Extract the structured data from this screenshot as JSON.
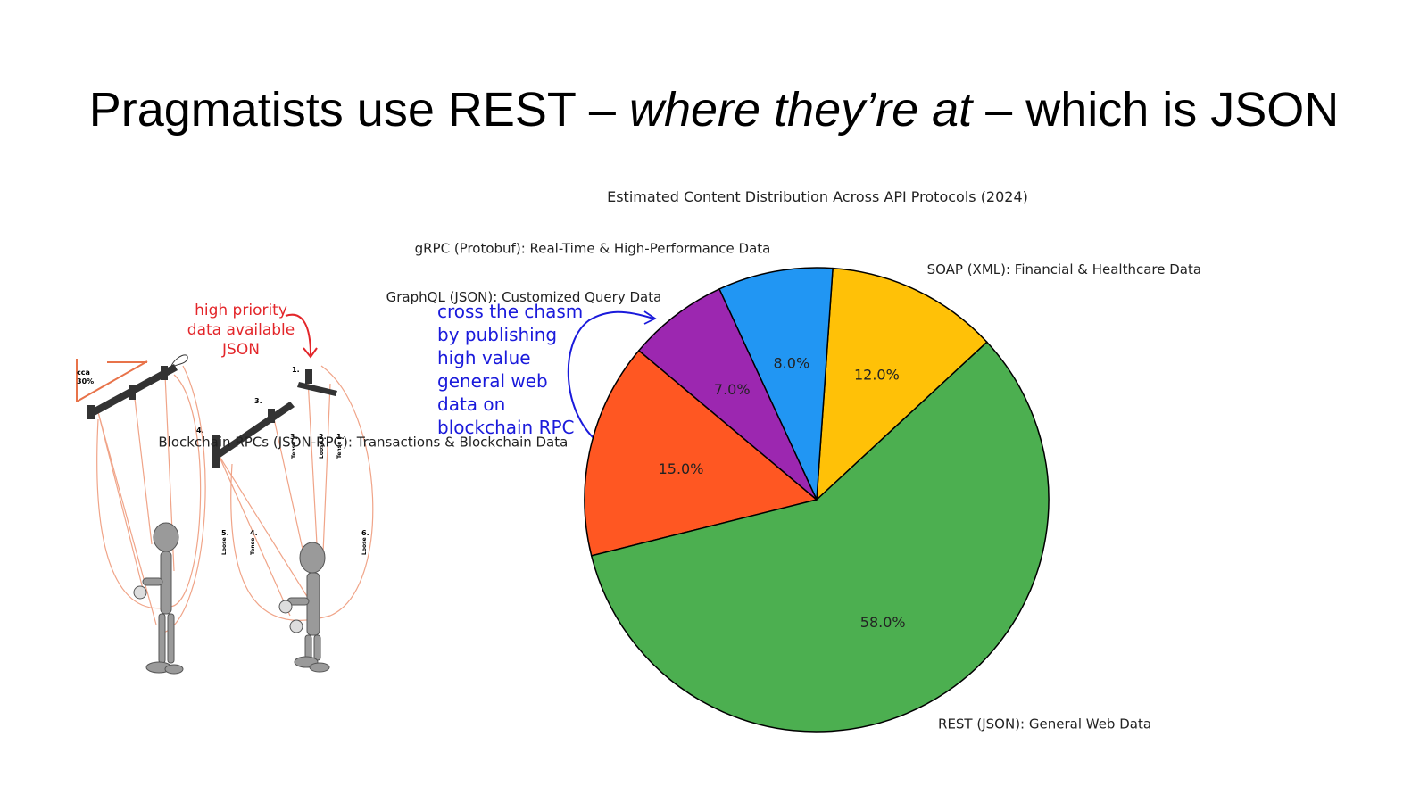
{
  "title": {
    "part1": "Pragmatists use REST – ",
    "italic": "where they’re at",
    "part2": " – which is JSON"
  },
  "annotations": {
    "blue_note": [
      "cross the chasm",
      "by publishing",
      "high value",
      "general web",
      "data on",
      "blockchain RPC"
    ],
    "red_note": [
      "high priority",
      "data available",
      "JSON"
    ],
    "illustration": {
      "angle_label": [
        "cca",
        "30%"
      ],
      "string_numbers": [
        "1.",
        "2.",
        "3.",
        "1.",
        "2.",
        "3.",
        "4.",
        "5.",
        "6."
      ],
      "string_words": [
        "Tense",
        "Loose",
        "Tense",
        "Loose",
        "Tense",
        "Loose"
      ]
    }
  },
  "chart_data": {
    "type": "pie",
    "title": "Estimated Content Distribution Across API Protocols (2024)",
    "start_angle": 140,
    "direction": "counterclockwise",
    "slices": [
      {
        "label": "Blockchain RPCs (JSON-RPC): Transactions & Blockchain Data",
        "value": 15.0,
        "pct_label": "15.0%",
        "color": "#ff5722"
      },
      {
        "label": "REST (JSON): General Web Data",
        "value": 58.0,
        "pct_label": "58.0%",
        "color": "#4caf50"
      },
      {
        "label": "SOAP (XML): Financial & Healthcare Data",
        "value": 12.0,
        "pct_label": "12.0%",
        "color": "#ffc107"
      },
      {
        "label": "gRPC (Protobuf): Real-Time & High-Performance Data",
        "value": 8.0,
        "pct_label": "8.0%",
        "color": "#2196f3"
      },
      {
        "label": "GraphQL (JSON): Customized Query Data",
        "value": 7.0,
        "pct_label": "7.0%",
        "color": "#9c27b0"
      }
    ]
  }
}
